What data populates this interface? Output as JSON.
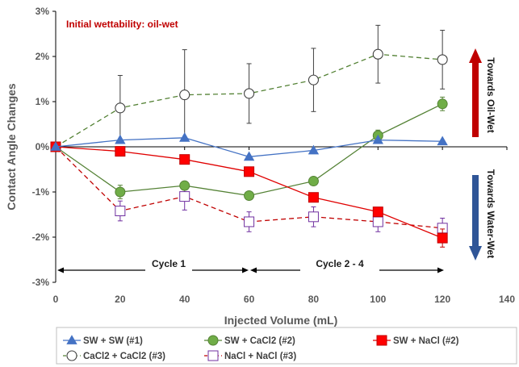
{
  "chart_data": {
    "type": "line",
    "xlabel": "Injected Volume (mL)",
    "ylabel": "Contact Angle Changes",
    "xlim": [
      0,
      140
    ],
    "ylim": [
      -3,
      3
    ],
    "x_ticks": [
      "0",
      "20",
      "40",
      "60",
      "80",
      "100",
      "120",
      "140"
    ],
    "y_ticks": [
      "-3%",
      "-2%",
      "-1%",
      "0%",
      "1%",
      "2%",
      "3%"
    ],
    "grid": false,
    "legend_position": "bottom",
    "annotations": {
      "wettability": "Initial wettability: oil-wet",
      "oil_wet": "Towards Oil-Wet",
      "water_wet": "Towards Water-Wet",
      "cycle1": "Cycle 1",
      "cycle2": "Cycle 2 - 4"
    },
    "series": [
      {
        "name": "SW + SW (#1)",
        "color": "#4472c4",
        "marker": "triangle",
        "line": "solid",
        "x": [
          0,
          20,
          40,
          60,
          80,
          100,
          120
        ],
        "values": [
          0,
          0.15,
          0.2,
          -0.22,
          -0.08,
          0.15,
          0.12
        ]
      },
      {
        "name": "SW + CaCl2 (#2)",
        "color": "#70ad47",
        "edge": "#548235",
        "lineColor": "#548235",
        "marker": "circle",
        "line": "solid",
        "x": [
          0,
          20,
          40,
          60,
          80,
          100,
          120
        ],
        "values": [
          0,
          -1.0,
          -0.86,
          -1.08,
          -0.76,
          0.25,
          0.95
        ],
        "errors": [
          0,
          0.15,
          0.06,
          0.08,
          0.06,
          0.12,
          0.15
        ]
      },
      {
        "name": "SW + NaCl (#2)",
        "color": "#ff0000",
        "edge": "#c00000",
        "lineColor": "#e00000",
        "marker": "square",
        "line": "solid",
        "x": [
          0,
          20,
          40,
          60,
          80,
          100,
          120
        ],
        "values": [
          0,
          -0.1,
          -0.28,
          -0.55,
          -1.12,
          -1.44,
          -2.02
        ],
        "errors": [
          0,
          0,
          0,
          0,
          0,
          0,
          0.2
        ]
      },
      {
        "name": "CaCl2 + CaCl2 (#3)",
        "color": "#ffffff",
        "edge": "#404040",
        "lineColor": "#548235",
        "marker": "circle-open",
        "line": "dashed",
        "x": [
          0,
          20,
          40,
          60,
          80,
          100,
          120
        ],
        "values": [
          0,
          0.86,
          1.15,
          1.18,
          1.48,
          2.05,
          1.93
        ],
        "errors": [
          0,
          0.72,
          1.0,
          0.66,
          0.7,
          0.64,
          0.65
        ]
      },
      {
        "name": "NaCl + NaCl (#3)",
        "color": "#ffffff",
        "edge": "#7030a0",
        "lineColor": "#c00000",
        "marker": "square-open",
        "line": "dashed",
        "x": [
          0,
          20,
          40,
          60,
          80,
          100,
          120
        ],
        "values": [
          0,
          -1.42,
          -1.1,
          -1.66,
          -1.55,
          -1.66,
          -1.8
        ],
        "errors": [
          0,
          0.22,
          0.3,
          0.22,
          0.22,
          0.22,
          0.22
        ]
      }
    ]
  }
}
